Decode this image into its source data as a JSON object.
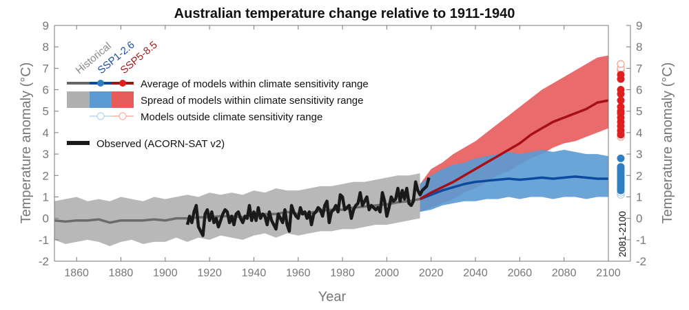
{
  "chart_data": {
    "type": "line",
    "title": "Australian temperature change relative to 1911-1940",
    "xlabel": "Year",
    "ylabel": "Temperature anomaly (°C)",
    "ylabel_right": "Temperature anomaly (°C)",
    "xlim": [
      1850,
      2100
    ],
    "ylim": [
      -2,
      9
    ],
    "xticks": [
      1860,
      1880,
      1900,
      1920,
      1940,
      1960,
      1980,
      2000,
      2020,
      2040,
      2060,
      2080,
      2100
    ],
    "yticks": [
      -2,
      -1,
      0,
      1,
      2,
      3,
      4,
      5,
      6,
      7,
      8,
      9
    ],
    "grid": false,
    "legend_placement": "top-left",
    "colors": {
      "historical_line": "#6b6b6b",
      "historical_fill": "#b0b0b0",
      "ssp126_line": "#0d4a9e",
      "ssp126_fill": "#5b9bd3",
      "ssp126_outside": "#a9cdea",
      "ssp585_line": "#a50f15",
      "ssp585_fill": "#e85b5b",
      "ssp585_outside": "#f4a08c",
      "observed": "#1a1a1a"
    },
    "legend": {
      "scenario_labels": [
        "Historical",
        "SSP1-2.6",
        "SSP5-8.5"
      ],
      "average": "Average of models within climate sensitivity range",
      "spread": "Spread of models within climate sensitivity range",
      "outside": "Models outside climate sensitivity range",
      "observed": "Observed (ACORN-SAT v2)"
    },
    "period_label": "2081-2100",
    "historical": {
      "name": "Historical",
      "x_start": 1850,
      "x_step": 5,
      "mean": [
        -0.1,
        -0.15,
        -0.1,
        -0.1,
        -0.05,
        -0.2,
        -0.1,
        -0.1,
        -0.1,
        -0.05,
        -0.1,
        0,
        0,
        0.05,
        0.05,
        0.1,
        0.1,
        0.05,
        0.15,
        0.2,
        0.2,
        0.3,
        0.2,
        0.25,
        0.35,
        0.4,
        0.4,
        0.5,
        0.55,
        0.6,
        0.65,
        0.75,
        0.8,
        0.9
      ],
      "lower": [
        -1.0,
        -1.2,
        -1.1,
        -1.0,
        -1.1,
        -1.3,
        -1.1,
        -1.0,
        -1.2,
        -1.1,
        -1.1,
        -0.9,
        -1.1,
        -0.9,
        -1.0,
        -0.8,
        -0.9,
        -1.0,
        -0.8,
        -0.7,
        -0.9,
        -0.7,
        -0.8,
        -0.7,
        -0.6,
        -0.6,
        -0.5,
        -0.5,
        -0.4,
        -0.3,
        -0.3,
        -0.2,
        -0.1,
        0.0
      ],
      "upper": [
        0.8,
        0.9,
        1.0,
        0.8,
        0.9,
        0.8,
        1.0,
        0.9,
        0.8,
        1.0,
        0.9,
        1.0,
        1.1,
        1.0,
        1.2,
        1.1,
        1.2,
        1.1,
        1.3,
        1.2,
        1.4,
        1.3,
        1.3,
        1.4,
        1.5,
        1.5,
        1.6,
        1.7,
        1.7,
        1.8,
        1.9,
        2.0,
        2.0,
        2.1
      ]
    },
    "ssp126": {
      "name": "SSP1-2.6",
      "x_start": 2015,
      "x_step": 5,
      "mean": [
        0.9,
        1.1,
        1.3,
        1.45,
        1.6,
        1.7,
        1.75,
        1.8,
        1.85,
        1.8,
        1.85,
        1.9,
        1.85,
        1.9,
        1.95,
        1.9,
        1.85,
        1.85
      ],
      "lower": [
        0.3,
        0.4,
        0.6,
        0.7,
        0.8,
        0.8,
        0.9,
        0.9,
        1.0,
        0.9,
        1.0,
        1.0,
        0.9,
        1.0,
        1.0,
        0.9,
        1.0,
        1.0
      ],
      "upper": [
        1.6,
        2.0,
        2.3,
        2.5,
        2.6,
        2.8,
        2.9,
        3.0,
        3.1,
        3.0,
        3.1,
        3.2,
        3.1,
        3.2,
        3.1,
        3.0,
        3.0,
        2.9
      ],
      "period_mean_2081_2100_within": [
        1.3,
        1.4,
        1.5,
        1.6,
        1.7,
        1.8,
        1.9,
        2.0,
        2.1,
        2.2,
        2.3,
        2.4,
        2.8
      ],
      "period_mean_2081_2100_outside": [
        1.1,
        1.2
      ]
    },
    "ssp585": {
      "name": "SSP5-8.5",
      "x_start": 2015,
      "x_step": 5,
      "mean": [
        0.9,
        1.2,
        1.45,
        1.7,
        2.0,
        2.3,
        2.6,
        2.9,
        3.2,
        3.5,
        3.9,
        4.2,
        4.5,
        4.7,
        4.9,
        5.1,
        5.4,
        5.5
      ],
      "lower": [
        0.3,
        0.5,
        0.7,
        0.9,
        1.2,
        1.4,
        1.7,
        2.0,
        2.2,
        2.5,
        2.8,
        3.0,
        3.3,
        3.5,
        3.6,
        3.8,
        4.0,
        4.2
      ],
      "upper": [
        1.6,
        2.3,
        2.6,
        3.0,
        3.3,
        3.6,
        4.0,
        4.4,
        4.8,
        5.2,
        5.6,
        6.0,
        6.3,
        6.6,
        6.9,
        7.2,
        7.5,
        7.6
      ],
      "period_mean_2081_2100_within": [
        3.9,
        4.1,
        4.3,
        4.5,
        4.7,
        4.9,
        5.0,
        5.2,
        5.5,
        5.8,
        6.0,
        6.5,
        6.7
      ],
      "period_mean_2081_2100_outside": [
        3.8,
        4.0,
        6.9,
        7.0,
        7.2
      ]
    },
    "observed": {
      "name": "Observed (ACORN-SAT v2)",
      "x_start": 1910,
      "values": [
        -0.3,
        0.1,
        -0.2,
        0.3,
        0.6,
        -0.4,
        -0.6,
        -0.8,
        0.2,
        0.4,
        -0.1,
        0.3,
        -0.2,
        0.0,
        -0.4,
        -0.1,
        0.2,
        0.4,
        0.3,
        -0.2,
        0.1,
        -0.3,
        0.2,
        0.3,
        0.0,
        -0.2,
        0.1,
        0.0,
        0.6,
        -0.1,
        0.3,
        -0.1,
        0.5,
        0.0,
        0.2,
        0.1,
        -0.3,
        0.3,
        -0.1,
        -0.3,
        -0.5,
        0.2,
        0.0,
        -0.2,
        0.4,
        -0.3,
        -0.6,
        0.6,
        0.3,
        0.1,
        0.0,
        0.5,
        0.2,
        0.3,
        0.0,
        0.3,
        -0.3,
        0.2,
        0.3,
        0.5,
        0.4,
        0.1,
        0.6,
        0.8,
        -0.2,
        0.3,
        0.4,
        0.6,
        0.3,
        1.1,
        1.0,
        0.4,
        0.5,
        0.6,
        0.0,
        0.4,
        0.6,
        0.7,
        1.2,
        0.6,
        0.8,
        1.0,
        0.4,
        0.6,
        0.5,
        0.4,
        0.5,
        0.3,
        1.2,
        0.8,
        0.1,
        0.5,
        1.0,
        0.8,
        0.9,
        1.4,
        0.8,
        1.3,
        0.9,
        1.4,
        0.7,
        0.6,
        0.8,
        1.7,
        1.3,
        1.1,
        1.3,
        1.4,
        1.5,
        1.9
      ]
    }
  }
}
